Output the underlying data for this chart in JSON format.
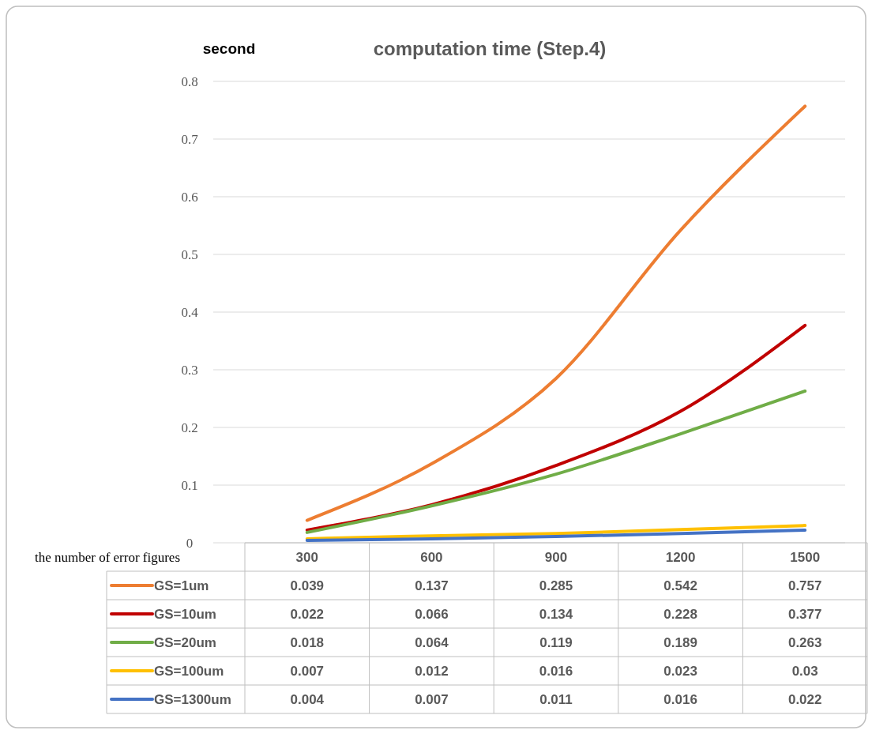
{
  "chart_data": {
    "type": "line",
    "title": "computation time (Step.4)",
    "ylabel": "second",
    "xlabel": "the number of error figures",
    "categories": [
      "300",
      "600",
      "900",
      "1200",
      "1500"
    ],
    "series": [
      {
        "name": "GS=1um",
        "color": "#ed7d31",
        "values": [
          0.039,
          0.137,
          0.285,
          0.542,
          0.757
        ]
      },
      {
        "name": "GS=10um",
        "color": "#c00000",
        "values": [
          0.022,
          0.066,
          0.134,
          0.228,
          0.377
        ]
      },
      {
        "name": "GS=20um",
        "color": "#70ad47",
        "values": [
          0.018,
          0.064,
          0.119,
          0.189,
          0.263
        ]
      },
      {
        "name": "GS=100um",
        "color": "#ffc000",
        "values": [
          0.007,
          0.012,
          0.016,
          0.023,
          0.03
        ]
      },
      {
        "name": "GS=1300um",
        "color": "#4472c4",
        "values": [
          0.004,
          0.007,
          0.011,
          0.016,
          0.022
        ]
      }
    ],
    "ylim": [
      0,
      0.8
    ],
    "yticks": [
      0,
      0.1,
      0.2,
      0.3,
      0.4,
      0.5,
      0.6,
      0.7,
      0.8
    ],
    "grid": "y",
    "legend": "bottom",
    "data_labels": true,
    "marker": "none",
    "line_style": "solid"
  }
}
